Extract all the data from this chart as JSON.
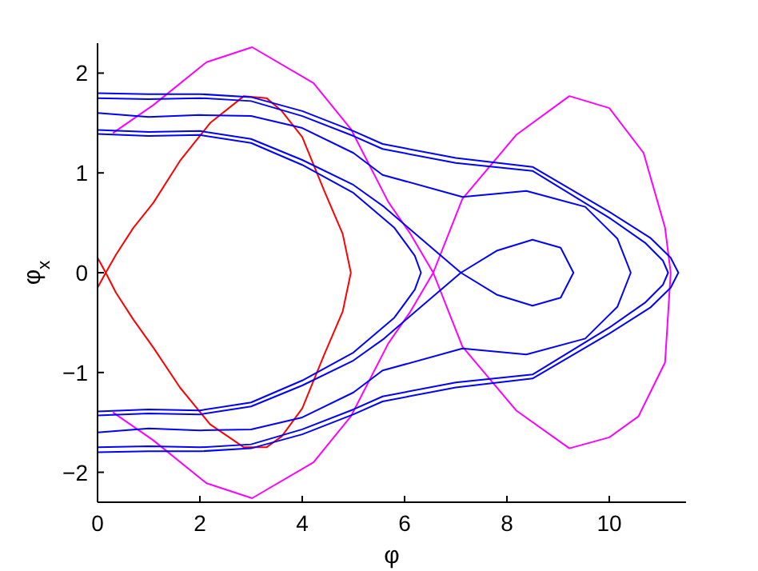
{
  "chart_data": {
    "type": "line",
    "xlabel": "φ",
    "ylabel": "φ$_{x}$",
    "xlim": [
      0,
      11.5
    ],
    "ylim": [
      -2.3,
      2.3
    ],
    "xticks": [
      0,
      2,
      4,
      6,
      8,
      10
    ],
    "yticks": [
      -2,
      -1,
      0,
      1,
      2
    ],
    "series": [
      {
        "color": "#ff0000",
        "x": [
          0,
          0.16,
          0.36,
          0.7,
          1.09,
          1.61,
          2.2,
          2.86,
          3.3,
          3.6,
          4.0,
          4.43,
          4.79,
          4.95,
          4.79,
          4.43,
          4.0,
          3.6,
          3.3,
          2.86,
          2.2,
          1.61,
          1.09,
          0.7,
          0.36,
          0.16,
          0
        ],
        "values": [
          -0.15,
          0,
          0.18,
          0.45,
          0.7,
          1.12,
          1.5,
          1.77,
          1.75,
          1.62,
          1.36,
          0.82,
          0.39,
          0,
          -0.39,
          -0.82,
          -1.36,
          -1.64,
          -1.75,
          -1.75,
          -1.52,
          -1.15,
          -0.75,
          -0.47,
          -0.2,
          0,
          0.15
        ]
      },
      {
        "color": "#ff00ff",
        "x": [
          0.3,
          1.09,
          2.13,
          3.02,
          4.22,
          4.95,
          5.68,
          6.1,
          6.56,
          7.13,
          8.18,
          9.22,
          10.0,
          10.57,
          11.09,
          11.2,
          11.09,
          10.67,
          10.0,
          9.22,
          8.18,
          7.13,
          6.56,
          6.1,
          5.68,
          4.95,
          4.22,
          3.02,
          2.13,
          1.09,
          0.3
        ],
        "values": [
          1.4,
          1.68,
          2.11,
          2.26,
          1.9,
          1.44,
          0.71,
          0.4,
          0,
          -0.74,
          -1.38,
          -1.76,
          -1.65,
          -1.44,
          -0.9,
          0,
          0.45,
          1.2,
          1.65,
          1.77,
          1.38,
          0.74,
          0,
          -0.4,
          -0.71,
          -1.44,
          -1.9,
          -2.26,
          -2.11,
          -1.68,
          -1.4
        ]
      },
      {
        "color": "#0000ff",
        "x": [
          0,
          1,
          2,
          3,
          4,
          5,
          5.57,
          7,
          8.5,
          10,
          10.8,
          11.2,
          11.35,
          11.2,
          10.8,
          10,
          8.5,
          7,
          5.57,
          5,
          4,
          3,
          2,
          1,
          0
        ],
        "values": [
          1.8,
          1.79,
          1.79,
          1.76,
          1.62,
          1.42,
          1.29,
          1.15,
          1.06,
          0.61,
          0.35,
          0.15,
          0,
          -0.15,
          -0.35,
          -0.61,
          -1.06,
          -1.15,
          -1.29,
          -1.42,
          -1.62,
          -1.76,
          -1.79,
          -1.79,
          -1.8
        ]
      },
      {
        "color": "#0000ff",
        "x": [
          0,
          1,
          2,
          3,
          4,
          5,
          5.57,
          7,
          8.5,
          10,
          10.7,
          11.05,
          11.15,
          11.05,
          10.7,
          10,
          8.5,
          7,
          5.57,
          5,
          4,
          3,
          2,
          1,
          0
        ],
        "values": [
          1.75,
          1.74,
          1.75,
          1.72,
          1.57,
          1.37,
          1.24,
          1.1,
          1.02,
          0.55,
          0.3,
          0.12,
          0,
          -0.12,
          -0.3,
          -0.55,
          -1.02,
          -1.1,
          -1.24,
          -1.37,
          -1.57,
          -1.72,
          -1.75,
          -1.74,
          -1.75
        ]
      },
      {
        "color": "#0000ff",
        "x": [
          0,
          1,
          2,
          3,
          4,
          5,
          5.57,
          7.13,
          8.38,
          9.53,
          10.16,
          10.42,
          10.16,
          9.53,
          8.38,
          7.13,
          5.57,
          5,
          4,
          3,
          2,
          1,
          0
        ],
        "values": [
          1.6,
          1.56,
          1.58,
          1.57,
          1.45,
          1.2,
          0.98,
          0.76,
          0.82,
          0.66,
          0.34,
          0,
          -0.34,
          -0.66,
          -0.82,
          -0.76,
          -0.98,
          -1.2,
          -1.45,
          -1.57,
          -1.58,
          -1.56,
          -1.6
        ]
      },
      {
        "color": "#0000ff",
        "x": [
          0,
          1,
          2,
          3,
          4,
          5,
          5.6,
          6.3,
          7.1,
          7.8,
          8.5,
          9.05,
          9.3,
          9.05,
          8.5,
          7.8,
          7.1,
          6.3,
          5.6,
          5,
          4,
          3,
          2,
          1,
          0
        ],
        "values": [
          1.43,
          1.41,
          1.42,
          1.34,
          1.13,
          0.88,
          0.66,
          0.35,
          0,
          0.22,
          0.33,
          0.25,
          0,
          -0.25,
          -0.33,
          -0.22,
          0,
          -0.35,
          -0.66,
          -0.88,
          -1.13,
          -1.34,
          -1.42,
          -1.41,
          -1.43
        ]
      },
      {
        "color": "#0000ff",
        "x": [
          0,
          1,
          2,
          3,
          4,
          5,
          5.8,
          6.2,
          6.32,
          6.2,
          5.8,
          5,
          4,
          3,
          2,
          1,
          0
        ],
        "values": [
          1.39,
          1.37,
          1.38,
          1.3,
          1.08,
          0.8,
          0.45,
          0.17,
          0,
          -0.17,
          -0.45,
          -0.8,
          -1.08,
          -1.3,
          -1.38,
          -1.37,
          -1.39
        ]
      }
    ]
  }
}
